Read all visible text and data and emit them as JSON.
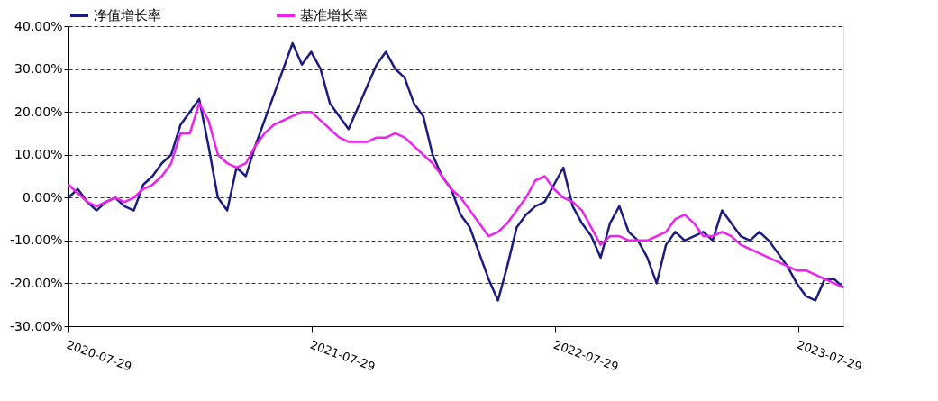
{
  "chart_data": {
    "type": "line",
    "legend": "top",
    "grid": "y",
    "line_style": "solid",
    "marker": "none",
    "x": [
      "2020-07-29",
      "2020-08-12",
      "2020-08-26",
      "2020-09-09",
      "2020-09-23",
      "2020-10-07",
      "2020-10-21",
      "2020-11-04",
      "2020-11-18",
      "2020-12-02",
      "2020-12-16",
      "2020-12-30",
      "2021-01-13",
      "2021-01-27",
      "2021-02-10",
      "2021-02-24",
      "2021-03-10",
      "2021-03-24",
      "2021-04-07",
      "2021-04-21",
      "2021-05-05",
      "2021-05-19",
      "2021-06-02",
      "2021-06-16",
      "2021-06-30",
      "2021-07-14",
      "2021-07-28",
      "2021-08-11",
      "2021-08-25",
      "2021-09-08",
      "2021-09-22",
      "2021-10-06",
      "2021-10-20",
      "2021-11-03",
      "2021-11-17",
      "2021-12-01",
      "2021-12-15",
      "2021-12-29",
      "2022-01-12",
      "2022-01-26",
      "2022-02-09",
      "2022-02-23",
      "2022-03-09",
      "2022-03-23",
      "2022-04-06",
      "2022-04-20",
      "2022-05-04",
      "2022-05-18",
      "2022-06-01",
      "2022-06-15",
      "2022-06-29",
      "2022-07-13",
      "2022-07-27",
      "2022-08-10",
      "2022-08-24",
      "2022-09-07",
      "2022-09-21",
      "2022-10-05",
      "2022-10-19",
      "2022-11-02",
      "2022-11-16",
      "2022-11-30",
      "2022-12-14",
      "2022-12-28",
      "2023-01-11",
      "2023-01-25",
      "2023-02-08",
      "2023-02-22",
      "2023-03-08",
      "2023-03-22",
      "2023-04-05",
      "2023-04-19",
      "2023-05-03",
      "2023-05-17",
      "2023-05-31",
      "2023-06-14",
      "2023-06-28",
      "2023-07-12",
      "2023-07-26",
      "2023-08-09",
      "2023-08-23",
      "2023-09-06",
      "2023-09-20",
      "2023-10-04"
    ],
    "series": [
      {
        "name": "净值增长率",
        "color": "#1c1c80",
        "values": [
          0,
          2,
          -1,
          -3,
          -1,
          0,
          -2,
          -3,
          3,
          5,
          8,
          10,
          17,
          20,
          23,
          12,
          0,
          -3,
          7,
          5,
          12,
          18,
          24,
          30,
          36,
          31,
          34,
          30,
          22,
          19,
          16,
          21,
          26,
          31,
          34,
          30,
          28,
          22,
          19,
          10,
          5,
          2,
          -4,
          -7,
          -13,
          -19,
          -24,
          -16,
          -7,
          -4,
          -2,
          -1,
          3,
          7,
          -2,
          -6,
          -9,
          -14,
          -6,
          -2,
          -8,
          -10,
          -14,
          -20,
          -11,
          -8,
          -10,
          -9,
          -8,
          -10,
          -3,
          -6,
          -9,
          -10,
          -8,
          -10,
          -13,
          -16,
          -20,
          -23,
          -24,
          -19,
          -19,
          -21
        ]
      },
      {
        "name": "基准增长率",
        "color": "#ee22ee",
        "values": [
          3,
          1,
          -1,
          -2,
          -1,
          0,
          -1,
          0,
          2,
          3,
          5,
          8,
          15,
          15,
          22,
          18,
          10,
          8,
          7,
          8,
          12,
          15,
          17,
          18,
          19,
          20,
          20,
          18,
          16,
          14,
          13,
          13,
          13,
          14,
          14,
          15,
          14,
          12,
          10,
          8,
          5,
          2,
          0,
          -3,
          -6,
          -9,
          -8,
          -6,
          -3,
          0,
          4,
          5,
          2,
          0,
          -1,
          -3,
          -7,
          -11,
          -9,
          -9,
          -10,
          -10,
          -10,
          -9,
          -8,
          -5,
          -4,
          -6,
          -9,
          -9,
          -8,
          -9,
          -11,
          -12,
          -13,
          -14,
          -15,
          -16,
          -17,
          -17,
          -18,
          -19,
          -20,
          -21
        ]
      }
    ],
    "xlim": [
      "2020-07-29",
      "2023-10-04"
    ],
    "xticks": [
      "2020-07-29",
      "2021-07-29",
      "2022-07-29",
      "2023-07-29"
    ],
    "ylim": [
      -30,
      40
    ],
    "yticks": [
      {
        "value": -30,
        "label": "-30.00%"
      },
      {
        "value": -20,
        "label": "-20.00%"
      },
      {
        "value": -10,
        "label": "-10.00%"
      },
      {
        "value": 0,
        "label": "0.00%"
      },
      {
        "value": 10,
        "label": "10.00%"
      },
      {
        "value": 20,
        "label": "20.00%"
      },
      {
        "value": 30,
        "label": "30.00%"
      },
      {
        "value": 40,
        "label": "40.00%"
      }
    ]
  }
}
